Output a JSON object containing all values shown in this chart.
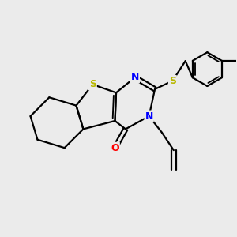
{
  "background_color": "#ebebeb",
  "atom_colors": {
    "S": "#b8b800",
    "N": "#0000ff",
    "O": "#ff0000",
    "C": "#000000"
  },
  "bond_color": "#000000",
  "bond_width": 1.6,
  "figsize": [
    3.0,
    3.0
  ],
  "dpi": 100
}
